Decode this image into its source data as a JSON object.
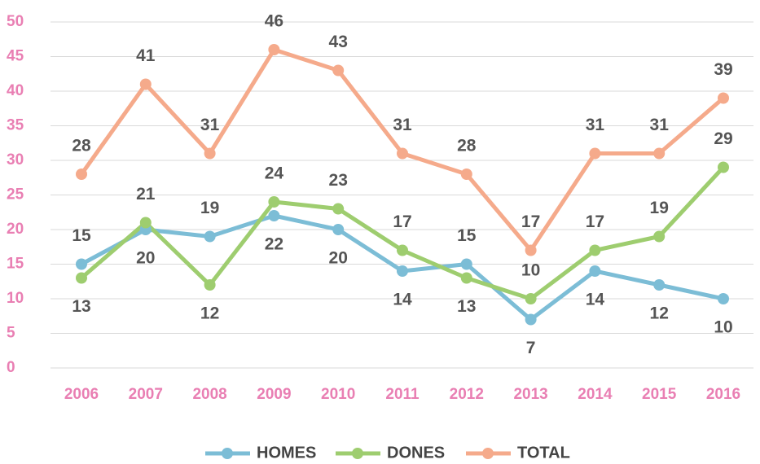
{
  "chart_data": {
    "type": "line",
    "categories": [
      "2006",
      "2007",
      "2008",
      "2009",
      "2010",
      "2011",
      "2012",
      "2013",
      "2014",
      "2015",
      "2016"
    ],
    "series": [
      {
        "name": "HOMES",
        "color": "#7cbdd6",
        "values": [
          15,
          20,
          19,
          22,
          20,
          14,
          15,
          7,
          14,
          12,
          10
        ]
      },
      {
        "name": "DONES",
        "color": "#9ecd6f",
        "values": [
          13,
          21,
          12,
          24,
          23,
          17,
          13,
          10,
          17,
          19,
          29
        ]
      },
      {
        "name": "TOTAL",
        "color": "#f5aa8b",
        "values": [
          28,
          41,
          31,
          46,
          43,
          31,
          28,
          17,
          31,
          31,
          39
        ]
      }
    ],
    "ylim": [
      0,
      50
    ],
    "yticks": [
      0,
      5,
      10,
      15,
      20,
      25,
      30,
      35,
      40,
      45,
      50
    ],
    "grid": true,
    "legend": "bottom"
  }
}
